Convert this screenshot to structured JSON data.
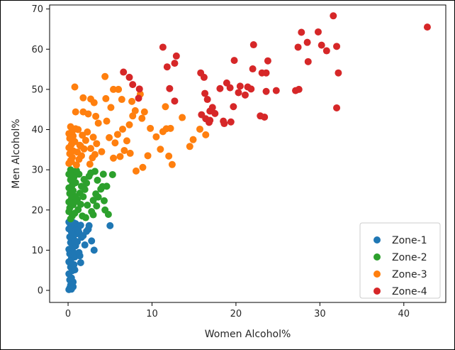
{
  "chart_data": {
    "type": "scatter",
    "title": "",
    "xlabel": "Women Alcohol%",
    "ylabel": "Men Alcohol%",
    "xlim": [
      -2.2,
      45
    ],
    "ylim": [
      -3,
      71
    ],
    "xticks": [
      0,
      10,
      20,
      30,
      40
    ],
    "yticks": [
      0,
      10,
      20,
      30,
      40,
      50,
      60,
      70
    ],
    "grid": false,
    "legend_position": "lower-right",
    "series": [
      {
        "name": "Zone-1",
        "color": "#1f77b4",
        "points": [
          [
            0.1,
            0.2
          ],
          [
            0.2,
            0.6
          ],
          [
            0.4,
            0.3
          ],
          [
            0.6,
            0.9
          ],
          [
            0.3,
            1.3
          ],
          [
            0.5,
            1.9
          ],
          [
            0.2,
            2.6
          ],
          [
            0.6,
            2.1
          ],
          [
            0.4,
            3.1
          ],
          [
            0.1,
            4.1
          ],
          [
            0.5,
            4.9
          ],
          [
            0.3,
            5.8
          ],
          [
            0.7,
            6.4
          ],
          [
            0.1,
            7.1
          ],
          [
            0.4,
            7.9
          ],
          [
            0.8,
            8.3
          ],
          [
            0.2,
            9.1
          ],
          [
            0.6,
            9.6
          ],
          [
            0.1,
            10.2
          ],
          [
            0.5,
            10.8
          ],
          [
            0.9,
            11.1
          ],
          [
            0.3,
            11.9
          ],
          [
            0.7,
            12.6
          ],
          [
            0.2,
            13.3
          ],
          [
            0.6,
            13.8
          ],
          [
            1.0,
            14.1
          ],
          [
            0.4,
            14.6
          ],
          [
            0.1,
            15.3
          ],
          [
            0.8,
            15.6
          ],
          [
            1.2,
            15.1
          ],
          [
            0.3,
            16.2
          ],
          [
            0.9,
            16.6
          ],
          [
            0.1,
            17.0
          ],
          [
            0.6,
            16.9
          ],
          [
            1.5,
            16.2
          ],
          [
            1.3,
            14.4
          ],
          [
            1.6,
            13.2
          ],
          [
            1.1,
            12.1
          ],
          [
            1.8,
            13.6
          ],
          [
            2.2,
            14.7
          ],
          [
            2.5,
            16.1
          ],
          [
            2.0,
            11.3
          ],
          [
            2.8,
            12.3
          ],
          [
            1.4,
            8.6
          ],
          [
            1.5,
            6.9
          ],
          [
            0.8,
            5.1
          ],
          [
            3.1,
            10.0
          ],
          [
            5.0,
            16.1
          ],
          [
            1.3,
            9.4
          ],
          [
            2.4,
            15.2
          ]
        ]
      },
      {
        "name": "Zone-2",
        "color": "#2ca02c",
        "points": [
          [
            0.1,
            19.6
          ],
          [
            0.3,
            17.8
          ],
          [
            0.5,
            18.5
          ],
          [
            0.2,
            20.5
          ],
          [
            0.6,
            21.3
          ],
          [
            0.1,
            22.0
          ],
          [
            0.4,
            22.8
          ],
          [
            0.8,
            23.4
          ],
          [
            0.2,
            24.1
          ],
          [
            0.6,
            24.8
          ],
          [
            0.1,
            25.5
          ],
          [
            0.5,
            26.2
          ],
          [
            0.9,
            26.8
          ],
          [
            0.3,
            27.5
          ],
          [
            0.7,
            28.2
          ],
          [
            0.1,
            28.9
          ],
          [
            0.5,
            29.4
          ],
          [
            1.0,
            29.8
          ],
          [
            0.3,
            30.0
          ],
          [
            0.8,
            19.2
          ],
          [
            1.2,
            20.1
          ],
          [
            1.5,
            21.4
          ],
          [
            1.1,
            22.6
          ],
          [
            1.8,
            23.3
          ],
          [
            1.4,
            24.2
          ],
          [
            2.0,
            25.1
          ],
          [
            1.6,
            25.9
          ],
          [
            2.2,
            26.7
          ],
          [
            1.9,
            27.6
          ],
          [
            2.5,
            28.4
          ],
          [
            1.3,
            28.9
          ],
          [
            2.7,
            29.2
          ],
          [
            0.9,
            22.1
          ],
          [
            1.7,
            18.5
          ],
          [
            2.3,
            21.2
          ],
          [
            3.0,
            22.4
          ],
          [
            3.3,
            24.0
          ],
          [
            2.8,
            19.6
          ],
          [
            3.4,
            21.0
          ],
          [
            3.0,
            18.8
          ],
          [
            3.6,
            23.2
          ],
          [
            3.9,
            25.2
          ],
          [
            4.1,
            25.8
          ],
          [
            4.3,
            22.3
          ],
          [
            4.6,
            25.9
          ],
          [
            4.4,
            20.0
          ],
          [
            4.8,
            18.9
          ],
          [
            5.3,
            28.8
          ],
          [
            4.2,
            28.9
          ],
          [
            3.2,
            29.6
          ],
          [
            3.5,
            27.4
          ],
          [
            2.1,
            18.1
          ]
        ]
      },
      {
        "name": "Zone-3",
        "color": "#ff7f0e",
        "points": [
          [
            0.1,
            31.6
          ],
          [
            0.3,
            32.3
          ],
          [
            0.5,
            33.1
          ],
          [
            0.2,
            34.0
          ],
          [
            0.6,
            34.7
          ],
          [
            0.1,
            35.5
          ],
          [
            0.4,
            36.3
          ],
          [
            0.8,
            37.0
          ],
          [
            0.2,
            37.8
          ],
          [
            0.6,
            38.4
          ],
          [
            0.1,
            39.0
          ],
          [
            0.5,
            39.6
          ],
          [
            0.9,
            40.2
          ],
          [
            0.3,
            40.7
          ],
          [
            1.0,
            31.2
          ],
          [
            1.3,
            32.6
          ],
          [
            1.6,
            33.5
          ],
          [
            1.1,
            34.4
          ],
          [
            1.9,
            35.2
          ],
          [
            1.4,
            36.1
          ],
          [
            2.1,
            37.3
          ],
          [
            1.7,
            38.6
          ],
          [
            2.3,
            39.4
          ],
          [
            1.2,
            40.0
          ],
          [
            2.6,
            31.4
          ],
          [
            2.9,
            33.0
          ],
          [
            3.2,
            33.8
          ],
          [
            2.7,
            35.3
          ],
          [
            3.4,
            36.5
          ],
          [
            3.0,
            38.1
          ],
          [
            3.6,
            41.6
          ],
          [
            3.3,
            43.3
          ],
          [
            2.4,
            43.9
          ],
          [
            1.8,
            44.4
          ],
          [
            0.9,
            44.4
          ],
          [
            0.8,
            50.6
          ],
          [
            1.8,
            47.9
          ],
          [
            2.7,
            47.6
          ],
          [
            3.1,
            46.7
          ],
          [
            4.4,
            53.2
          ],
          [
            4.5,
            47.7
          ],
          [
            5.4,
            50.0
          ],
          [
            5.1,
            45.5
          ],
          [
            6.0,
            50.0
          ],
          [
            6.4,
            47.5
          ],
          [
            4.6,
            42.1
          ],
          [
            4.9,
            38.0
          ],
          [
            5.6,
            36.7
          ],
          [
            5.9,
            38.8
          ],
          [
            6.2,
            33.3
          ],
          [
            6.7,
            34.8
          ],
          [
            7.0,
            37.2
          ],
          [
            6.5,
            40.1
          ],
          [
            7.3,
            41.2
          ],
          [
            7.7,
            43.4
          ],
          [
            8.0,
            44.7
          ],
          [
            8.6,
            48.8
          ],
          [
            8.8,
            42.8
          ],
          [
            9.1,
            44.4
          ],
          [
            7.6,
            47.0
          ],
          [
            8.1,
            29.7
          ],
          [
            8.9,
            30.6
          ],
          [
            9.5,
            33.5
          ],
          [
            9.8,
            40.3
          ],
          [
            10.5,
            38.2
          ],
          [
            11.0,
            35.1
          ],
          [
            11.3,
            39.5
          ],
          [
            11.7,
            40.2
          ],
          [
            11.6,
            45.7
          ],
          [
            12.2,
            40.3
          ],
          [
            12.0,
            33.4
          ],
          [
            12.4,
            31.3
          ],
          [
            13.6,
            43.0
          ],
          [
            14.5,
            35.8
          ],
          [
            14.9,
            37.5
          ],
          [
            15.7,
            40.1
          ],
          [
            16.4,
            38.7
          ],
          [
            7.4,
            34.1
          ],
          [
            5.4,
            32.9
          ],
          [
            4.0,
            34.5
          ],
          [
            0.4,
            32.0
          ],
          [
            1.5,
            35.9
          ]
        ]
      },
      {
        "name": "Zone-4",
        "color": "#d62728",
        "points": [
          [
            6.6,
            54.3
          ],
          [
            7.3,
            53.0
          ],
          [
            7.7,
            51.2
          ],
          [
            8.5,
            50.1
          ],
          [
            8.4,
            47.8
          ],
          [
            11.3,
            60.5
          ],
          [
            11.8,
            55.6
          ],
          [
            12.7,
            56.5
          ],
          [
            12.9,
            58.3
          ],
          [
            12.1,
            50.2
          ],
          [
            12.7,
            47.1
          ],
          [
            15.8,
            54.1
          ],
          [
            16.2,
            53.0
          ],
          [
            16.3,
            49.0
          ],
          [
            16.6,
            47.5
          ],
          [
            15.9,
            43.7
          ],
          [
            16.4,
            42.7
          ],
          [
            16.9,
            44.6
          ],
          [
            17.2,
            45.5
          ],
          [
            17.5,
            44.0
          ],
          [
            16.8,
            41.8
          ],
          [
            18.1,
            50.2
          ],
          [
            18.9,
            51.6
          ],
          [
            19.3,
            50.4
          ],
          [
            19.7,
            45.7
          ],
          [
            18.5,
            42.1
          ],
          [
            18.6,
            41.5
          ],
          [
            19.8,
            57.2
          ],
          [
            20.3,
            49.2
          ],
          [
            21.1,
            48.6
          ],
          [
            21.4,
            50.6
          ],
          [
            21.8,
            50.1
          ],
          [
            22.0,
            55.1
          ],
          [
            22.1,
            61.1
          ],
          [
            22.9,
            43.4
          ],
          [
            23.1,
            54.1
          ],
          [
            23.4,
            43.1
          ],
          [
            23.6,
            54.1
          ],
          [
            23.6,
            49.5
          ],
          [
            23.8,
            57.1
          ],
          [
            24.8,
            49.7
          ],
          [
            27.1,
            49.7
          ],
          [
            27.5,
            50.0
          ],
          [
            27.4,
            60.5
          ],
          [
            27.8,
            64.2
          ],
          [
            28.5,
            61.7
          ],
          [
            28.6,
            56.9
          ],
          [
            29.8,
            64.3
          ],
          [
            30.2,
            61.0
          ],
          [
            30.8,
            59.6
          ],
          [
            31.6,
            68.3
          ],
          [
            32.0,
            60.7
          ],
          [
            32.2,
            54.1
          ],
          [
            32.0,
            45.4
          ],
          [
            42.8,
            65.5
          ],
          [
            16.9,
            42.3
          ],
          [
            19.4,
            41.9
          ],
          [
            20.5,
            50.8
          ]
        ]
      }
    ]
  }
}
